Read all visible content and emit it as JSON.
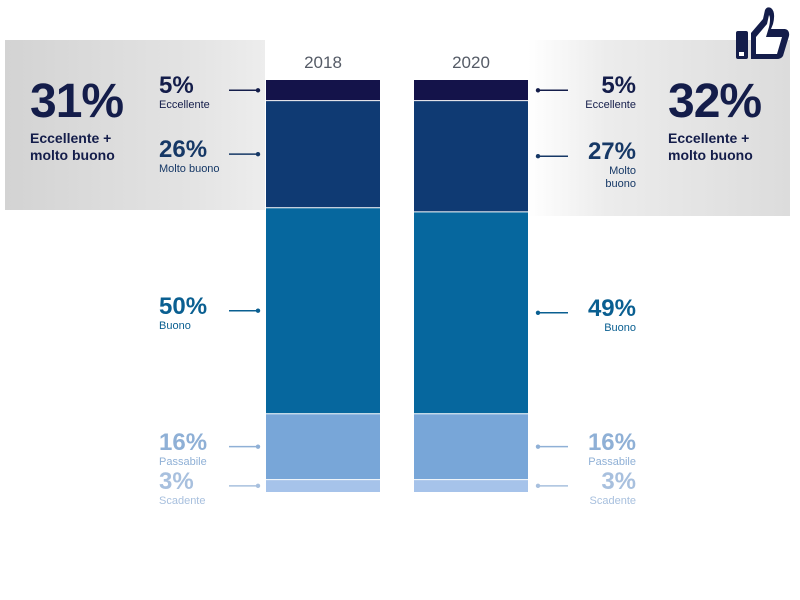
{
  "chart_data": {
    "type": "bar",
    "stacked": true,
    "categories": [
      "2018",
      "2020"
    ],
    "series": [
      {
        "name": "Eccellente",
        "values": [
          5,
          5
        ],
        "color": "#14134a"
      },
      {
        "name": "Molto buono",
        "values": [
          26,
          27
        ],
        "color": "#0f3a73"
      },
      {
        "name": "Buono",
        "values": [
          50,
          49
        ],
        "color": "#06679e"
      },
      {
        "name": "Passabile",
        "values": [
          16,
          16
        ],
        "color": "#78a6d8"
      },
      {
        "name": "Scadente",
        "values": [
          3,
          3
        ],
        "color": "#a6c3ea"
      }
    ],
    "labels_2018": [
      {
        "pct": "5%",
        "name": "Eccellente",
        "color": "#141d4a"
      },
      {
        "pct": "26%",
        "name": "Molto buono",
        "color": "#163866"
      },
      {
        "pct": "50%",
        "name": "Buono",
        "color": "#0a5f91"
      },
      {
        "pct": "16%",
        "name": "Passabile",
        "color": "#8fb0d6"
      },
      {
        "pct": "3%",
        "name": "Scadente",
        "color": "#a8c0de"
      }
    ],
    "labels_2020": [
      {
        "pct": "5%",
        "name": "Eccellente",
        "color": "#141d4a"
      },
      {
        "pct": "27%",
        "name": "Molto buono",
        "color": "#163866"
      },
      {
        "pct": "49%",
        "name": "Buono",
        "color": "#0a5f91"
      },
      {
        "pct": "16%",
        "name": "Passabile",
        "color": "#8fb0d6"
      },
      {
        "pct": "3%",
        "name": "Scadente",
        "color": "#a8c0de"
      }
    ],
    "summary_2018": {
      "pct": "31%",
      "text": "Eccellente + molto buono"
    },
    "summary_2020": {
      "pct": "32%",
      "text": "Eccellente + molto buono"
    },
    "ylim": [
      0,
      100
    ]
  },
  "icon": "thumbs-up-icon"
}
